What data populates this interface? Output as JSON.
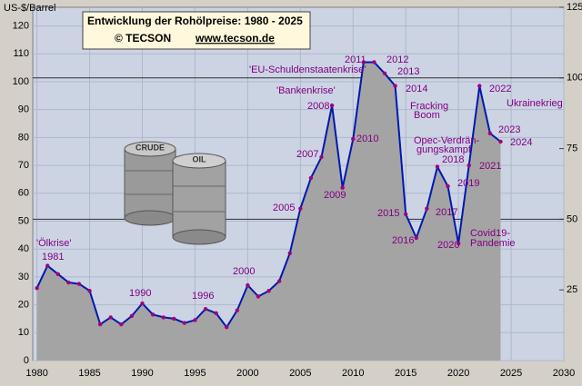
{
  "chart_data": {
    "type": "area",
    "title": "Entwicklung der Rohölpreise:  1980 - 2025",
    "copyright": "© TECSON",
    "url": "www.tecson.de",
    "y_label": "US-$/Barrel",
    "barrel_labels": [
      "CRUDE",
      "OIL"
    ],
    "x": [
      1980,
      1981,
      1982,
      1983,
      1984,
      1985,
      1986,
      1987,
      1988,
      1989,
      1990,
      1991,
      1992,
      1993,
      1994,
      1995,
      1996,
      1997,
      1998,
      1999,
      2000,
      2001,
      2002,
      2003,
      2004,
      2005,
      2006,
      2007,
      2008,
      2009,
      2010,
      2011,
      2012,
      2013,
      2014,
      2015,
      2016,
      2017,
      2018,
      2019,
      2020,
      2021,
      2022,
      2023,
      2024
    ],
    "series": [
      {
        "name": "Rohölpreis",
        "color": "#0018b0",
        "fill": "#a4a4a4",
        "marker_color": "#a0007a",
        "values": [
          26,
          34,
          31,
          28,
          27.5,
          25,
          13,
          15.5,
          13,
          16,
          20.5,
          16.5,
          15.5,
          15,
          13.5,
          14.5,
          18.5,
          17,
          12,
          18,
          27,
          23,
          25,
          28.5,
          38.5,
          54.5,
          65.5,
          73,
          91.5,
          62,
          79.5,
          107,
          107,
          103,
          98.5,
          52.5,
          44,
          54.5,
          69.5,
          62.5,
          42,
          70,
          98.5,
          81.5,
          78.5
        ]
      }
    ],
    "xlim": [
      1979.6,
      2030
    ],
    "xticks": [
      1980,
      1985,
      1990,
      1995,
      2000,
      2005,
      2010,
      2015,
      2020,
      2025,
      2030
    ],
    "ylim": [
      0,
      126.7
    ],
    "yticks": [
      0,
      10,
      20,
      30,
      40,
      50,
      60,
      70,
      80,
      90,
      100,
      110,
      120
    ],
    "y2lim": [
      0,
      125
    ],
    "y2ticks": [
      25,
      50,
      75,
      100,
      125
    ],
    "reference_lines": [
      50,
      100
    ],
    "grid": true,
    "annotations": [
      "'Ölkrise'",
      "1981",
      "1990",
      "1996",
      "2000",
      "2005",
      "2007",
      "2008",
      "2009",
      "2010",
      "'Bankenkrise'",
      "'EU-Schuldenstaatenkrise'",
      "2011",
      "2012",
      "2013",
      "2014",
      "Fracking",
      "Boom",
      "Opec-Verdrän-",
      "gungskampf",
      "2015",
      "2016",
      "2017",
      "2018",
      "2019",
      "2020",
      "2021",
      "2022",
      "Ukrainekrieg",
      "2023",
      "2024",
      "Covid19-",
      "Pandemie"
    ]
  }
}
